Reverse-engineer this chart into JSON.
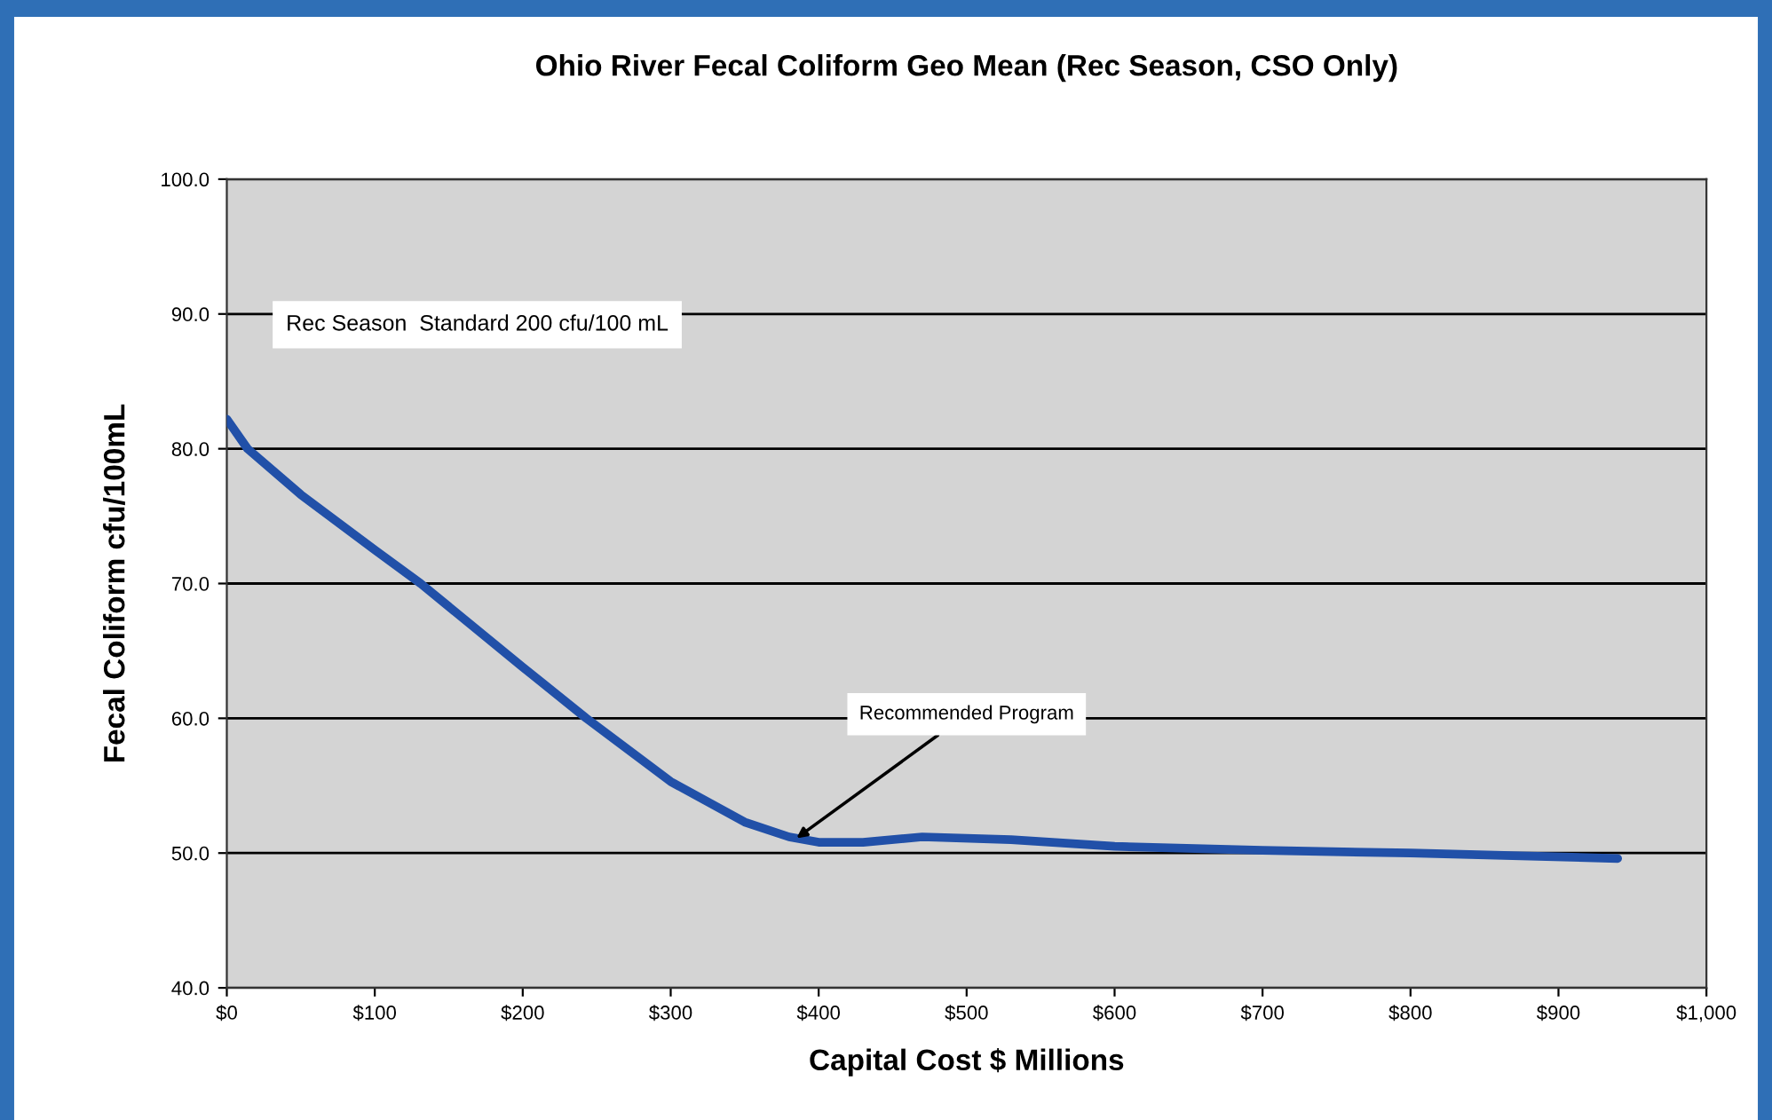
{
  "chart_data": {
    "type": "line",
    "title": "Ohio River Fecal Coliform Geo Mean (Rec Season, CSO Only)",
    "xlabel": "Capital Cost $ Millions",
    "ylabel": "Fecal Coliform cfu/100mL",
    "series": [
      {
        "color": "#2150a8",
        "x": [
          0,
          14,
          50,
          100,
          131,
          200,
          243,
          300,
          350,
          380,
          400,
          430,
          470,
          530,
          600,
          700,
          800,
          940
        ],
        "values": [
          82.2,
          80,
          76.6,
          72.5,
          70,
          63.8,
          60,
          55.3,
          52.3,
          51.2,
          50.8,
          50.8,
          51.2,
          51.0,
          50.5,
          50.2,
          50.0,
          49.6
        ]
      }
    ],
    "xlim": [
      0,
      1000
    ],
    "xticks": [
      {
        "value": 0,
        "label": "$0"
      },
      {
        "value": 100,
        "label": "$100"
      },
      {
        "value": 200,
        "label": "$200"
      },
      {
        "value": 300,
        "label": "$300"
      },
      {
        "value": 400,
        "label": "$400"
      },
      {
        "value": 500,
        "label": "$500"
      },
      {
        "value": 600,
        "label": "$600"
      },
      {
        "value": 700,
        "label": "$700"
      },
      {
        "value": 800,
        "label": "$800"
      },
      {
        "value": 900,
        "label": "$900"
      },
      {
        "value": 1000,
        "label": "$1,000"
      }
    ],
    "ylim": [
      40,
      100
    ],
    "yticks": [
      {
        "value": 40,
        "label": "40.0"
      },
      {
        "value": 50,
        "label": "50.0"
      },
      {
        "value": 60,
        "label": "60.0"
      },
      {
        "value": 70,
        "label": "70.0"
      },
      {
        "value": 80,
        "label": "80.0"
      },
      {
        "value": 90,
        "label": "90.0"
      },
      {
        "value": 100,
        "label": "100.0"
      }
    ],
    "grid": "y",
    "marker": "none",
    "line_style": "solid",
    "legend": false,
    "annotations": [
      "Rec Season  Standard 200 cfu/100 mL",
      {
        "text": "Recommended Program",
        "x": 385,
        "y": 51.1
      }
    ]
  }
}
